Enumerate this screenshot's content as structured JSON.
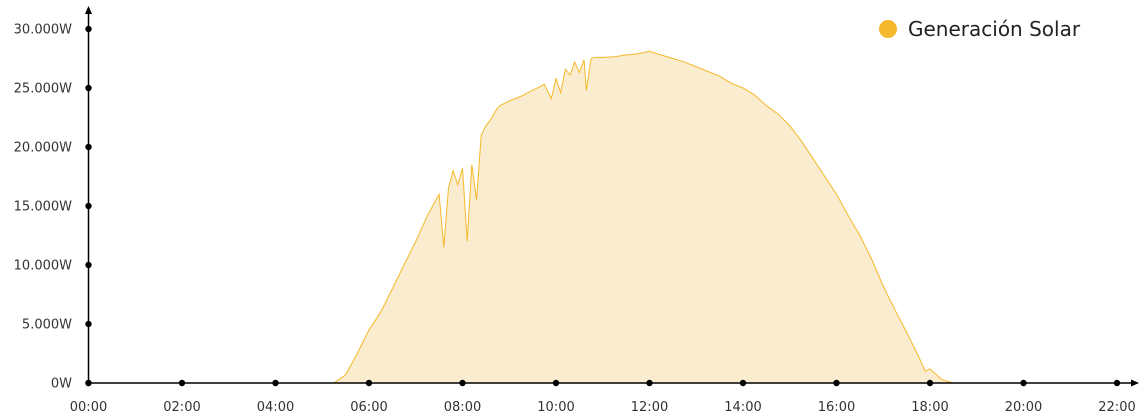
{
  "chart_data": {
    "type": "area",
    "title": "",
    "xlabel": "",
    "ylabel": "",
    "legend": {
      "position": "top-right"
    },
    "grid": false,
    "x_ticks": [
      "00:00",
      "02:00",
      "04:00",
      "06:00",
      "08:00",
      "10:00",
      "12:00",
      "14:00",
      "16:00",
      "18:00",
      "20:00",
      "22:00"
    ],
    "y_ticks": [
      "0W",
      "5.000W",
      "10.000W",
      "15.000W",
      "20.000W",
      "25.000W",
      "30.000W"
    ],
    "xlim_hours": [
      0,
      22
    ],
    "ylim": [
      0,
      30000
    ],
    "series": [
      {
        "name": "Generación Solar",
        "color": "#f5b82a",
        "fill": "#faecce",
        "x_hours": [
          5.25,
          5.5,
          5.75,
          6.0,
          6.25,
          6.5,
          6.75,
          7.0,
          7.25,
          7.5,
          7.6,
          7.7,
          7.8,
          7.9,
          8.0,
          8.1,
          8.2,
          8.3,
          8.4,
          8.5,
          8.6,
          8.7,
          8.75,
          8.8,
          9.0,
          9.25,
          9.5,
          9.75,
          9.9,
          10.0,
          10.1,
          10.2,
          10.3,
          10.4,
          10.5,
          10.6,
          10.65,
          10.75,
          10.85,
          11.0,
          11.25,
          11.5,
          11.75,
          12.0,
          12.25,
          12.5,
          12.75,
          13.0,
          13.25,
          13.5,
          13.75,
          14.0,
          14.25,
          14.5,
          14.75,
          15.0,
          15.25,
          15.5,
          15.75,
          16.0,
          16.25,
          16.5,
          16.75,
          17.0,
          17.25,
          17.5,
          17.75,
          17.9,
          18.0,
          18.25,
          18.5,
          18.75
        ],
        "values": [
          0,
          700,
          2500,
          4500,
          6000,
          8000,
          10000,
          12000,
          14200,
          16000,
          11500,
          16500,
          18000,
          16800,
          18200,
          12000,
          18500,
          15500,
          21000,
          21800,
          22300,
          23000,
          23300,
          23500,
          23900,
          24300,
          24800,
          25300,
          24100,
          25800,
          24600,
          26600,
          26100,
          27200,
          26300,
          27400,
          24800,
          27500,
          27600,
          27600,
          27650,
          27800,
          27900,
          28100,
          27800,
          27500,
          27200,
          26800,
          26400,
          26000,
          25400,
          25000,
          24400,
          23500,
          22800,
          21800,
          20500,
          19000,
          17500,
          16000,
          14200,
          12500,
          10500,
          8200,
          6200,
          4300,
          2300,
          1000,
          1200,
          300,
          0,
          0
        ]
      }
    ]
  }
}
